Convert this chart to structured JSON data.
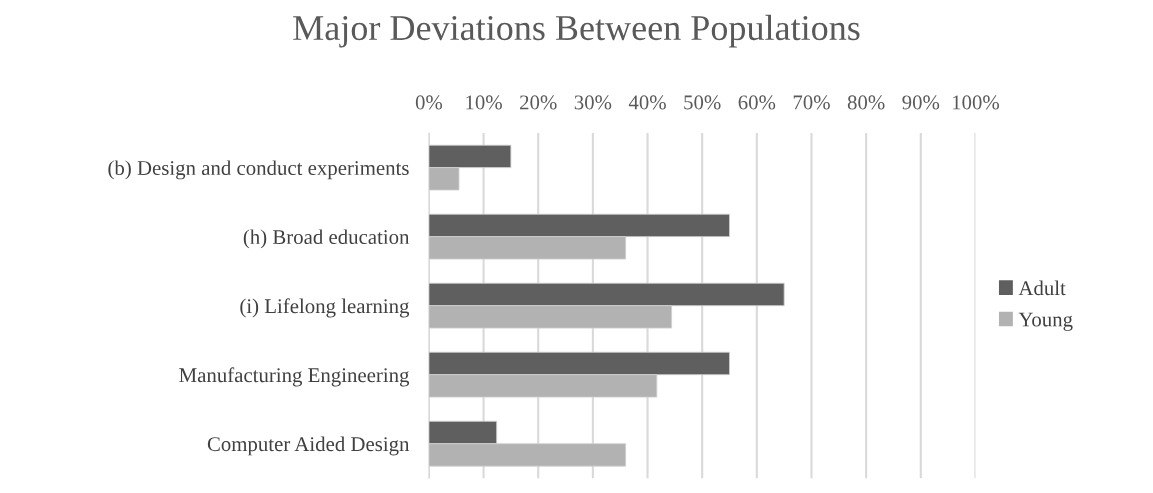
{
  "chart_data": {
    "type": "bar",
    "orientation": "horizontal",
    "title": "Major Deviations Between Populations",
    "categories": [
      "(b) Design and conduct experiments",
      "(h) Broad education",
      "(i) Lifelong learning",
      "Manufacturing Engineering",
      "Computer Aided Design"
    ],
    "series": [
      {
        "name": "Adult",
        "color": "#5f5f5f",
        "values": [
          15,
          55,
          65,
          55,
          12.4
        ]
      },
      {
        "name": "Young",
        "color": "#b2b2b2",
        "values": [
          5.5,
          36,
          44.4,
          41.7,
          36
        ]
      }
    ],
    "xlim": [
      0,
      100
    ],
    "xticks": [
      {
        "value": 0,
        "label": "0%"
      },
      {
        "value": 10,
        "label": "10%"
      },
      {
        "value": 20,
        "label": "20%"
      },
      {
        "value": 30,
        "label": "30%"
      },
      {
        "value": 40,
        "label": "40%"
      },
      {
        "value": 50,
        "label": "50%"
      },
      {
        "value": 60,
        "label": "60%"
      },
      {
        "value": 70,
        "label": "70%"
      },
      {
        "value": 80,
        "label": "80%"
      },
      {
        "value": 90,
        "label": "90%"
      },
      {
        "value": 100,
        "label": "100%"
      }
    ],
    "grid": "x",
    "legend": "right"
  }
}
